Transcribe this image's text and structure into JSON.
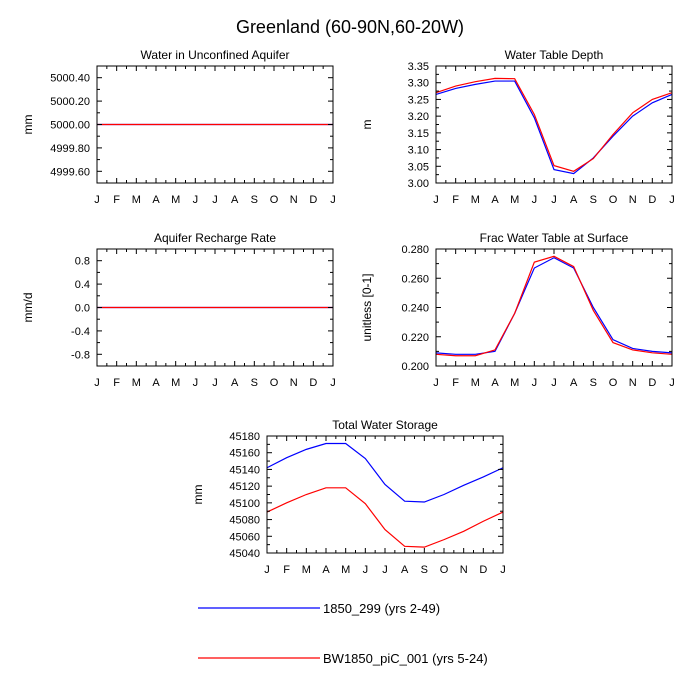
{
  "figure_title": "Greenland (60-90N,60-20W)",
  "months": [
    "J",
    "F",
    "M",
    "A",
    "M",
    "J",
    "J",
    "A",
    "S",
    "O",
    "N",
    "D",
    "J"
  ],
  "colors": {
    "series1": "#0000ff",
    "series2": "#ff0000",
    "axis": "#000000"
  },
  "legend": [
    {
      "label": "1850_299 (yrs 2-49)",
      "color": "#0000ff"
    },
    {
      "label": "BW1850_piC_001 (yrs 5-24)",
      "color": "#ff0000"
    }
  ],
  "chart_data": [
    {
      "type": "line",
      "title": "Water in Unconfined Aquifer",
      "ylabel": "mm",
      "ylim": [
        4999.5,
        5000.5
      ],
      "yticks": [
        4999.6,
        4999.8,
        5000.0,
        5000.2,
        5000.4
      ],
      "ytick_labels": [
        "4999.60",
        "4999.80",
        "5000.00",
        "5000.20",
        "5000.40"
      ],
      "series": [
        {
          "name": "1850_299 (yrs 2-49)",
          "values": [
            5000,
            5000,
            5000,
            5000,
            5000,
            5000,
            5000,
            5000,
            5000,
            5000,
            5000,
            5000,
            5000
          ]
        },
        {
          "name": "BW1850_piC_001 (yrs 5-24)",
          "values": [
            5000,
            5000,
            5000,
            5000,
            5000,
            5000,
            5000,
            5000,
            5000,
            5000,
            5000,
            5000,
            5000
          ]
        }
      ]
    },
    {
      "type": "line",
      "title": "Water Table Depth",
      "ylabel": "m",
      "ylim": [
        3.0,
        3.35
      ],
      "yticks": [
        3.0,
        3.05,
        3.1,
        3.15,
        3.2,
        3.25,
        3.3,
        3.35
      ],
      "ytick_labels": [
        "3.00",
        "3.05",
        "3.10",
        "3.15",
        "3.20",
        "3.25",
        "3.30",
        "3.35"
      ],
      "series": [
        {
          "name": "1850_299 (yrs 2-49)",
          "values": [
            3.265,
            3.283,
            3.295,
            3.305,
            3.305,
            3.195,
            3.04,
            3.028,
            3.075,
            3.14,
            3.2,
            3.24,
            3.265
          ]
        },
        {
          "name": "BW1850_piC_001 (yrs 5-24)",
          "values": [
            3.27,
            3.29,
            3.303,
            3.313,
            3.312,
            3.205,
            3.052,
            3.035,
            3.073,
            3.145,
            3.21,
            3.25,
            3.27
          ]
        }
      ]
    },
    {
      "type": "line",
      "title": "Aquifer Recharge Rate",
      "ylabel": "mm/d",
      "ylim": [
        -1.0,
        1.0
      ],
      "yticks": [
        -0.8,
        -0.4,
        0.0,
        0.4,
        0.8
      ],
      "ytick_labels": [
        "-0.8",
        "-0.4",
        "0.0",
        "0.4",
        "0.8"
      ],
      "series": [
        {
          "name": "1850_299 (yrs 2-49)",
          "values": [
            0,
            0,
            0,
            0,
            0,
            0,
            0,
            0,
            0,
            0,
            0,
            0,
            0
          ]
        },
        {
          "name": "BW1850_piC_001 (yrs 5-24)",
          "values": [
            0,
            0,
            0,
            0,
            0,
            0,
            0,
            0,
            0,
            0,
            0,
            0,
            0
          ]
        }
      ]
    },
    {
      "type": "line",
      "title": "Frac Water Table at Surface",
      "ylabel": "unitless [0-1]",
      "ylim": [
        0.2,
        0.28
      ],
      "yticks": [
        0.2,
        0.22,
        0.24,
        0.26,
        0.28
      ],
      "ytick_labels": [
        "0.200",
        "0.220",
        "0.240",
        "0.260",
        "0.280"
      ],
      "series": [
        {
          "name": "1850_299 (yrs 2-49)",
          "values": [
            0.209,
            0.208,
            0.208,
            0.21,
            0.236,
            0.267,
            0.274,
            0.267,
            0.24,
            0.218,
            0.212,
            0.21,
            0.209
          ]
        },
        {
          "name": "BW1850_piC_001 (yrs 5-24)",
          "values": [
            0.208,
            0.207,
            0.207,
            0.211,
            0.236,
            0.271,
            0.275,
            0.268,
            0.238,
            0.216,
            0.211,
            0.209,
            0.208
          ]
        }
      ]
    },
    {
      "type": "line",
      "title": "Total Water Storage",
      "ylabel": "mm",
      "ylim": [
        45040,
        45180
      ],
      "yticks": [
        45040,
        45060,
        45080,
        45100,
        45120,
        45140,
        45160,
        45180
      ],
      "ytick_labels": [
        "45040",
        "45060",
        "45080",
        "45100",
        "45120",
        "45140",
        "45160",
        "45180"
      ],
      "series": [
        {
          "name": "1850_299 (yrs 2-49)",
          "values": [
            45142,
            45154,
            45164,
            45171,
            45171,
            45153,
            45122,
            45102,
            45101,
            45110,
            45121,
            45131,
            45142
          ]
        },
        {
          "name": "BW1850_piC_001 (yrs 5-24)",
          "values": [
            45089,
            45100,
            45110,
            45118,
            45118,
            45099,
            45068,
            45048,
            45047,
            45056,
            45066,
            45078,
            45089
          ]
        }
      ]
    }
  ]
}
